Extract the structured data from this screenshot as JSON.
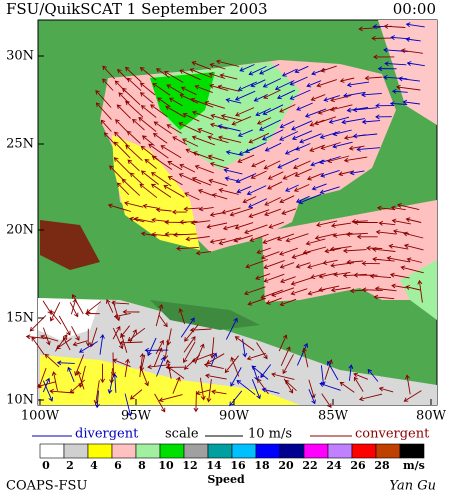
{
  "header": {
    "title": "FSU/QuikSCAT  1 September 2003",
    "time": "00:00"
  },
  "map": {
    "lat_labels": [
      "30N",
      "25N",
      "20N",
      "15N",
      "10N"
    ],
    "lon_labels": [
      "100W",
      "95W",
      "90W",
      "85W",
      "80W"
    ]
  },
  "legend": {
    "divergent": "divergent",
    "scale": "scale",
    "scale_value": "10 m/s",
    "convergent": "convergent"
  },
  "colorbar": {
    "labels": [
      0,
      2,
      4,
      6,
      8,
      10,
      12,
      14,
      16,
      18,
      20,
      22,
      24,
      26,
      28
    ],
    "colors": [
      "#ffffff",
      "#d0d0d0",
      "#ffff00",
      "#ffc0c0",
      "#a0f0a0",
      "#00e000",
      "#a0a0a0",
      "#00a0a0",
      "#00c0ff",
      "#0000ff",
      "#000090",
      "#ff00ff",
      "#c080ff",
      "#ff0000",
      "#c04000",
      "#000000"
    ],
    "unit": "m/s",
    "title": "Speed"
  },
  "footer": {
    "credit": "COAPS-FSU",
    "author": "Yan Gu"
  }
}
